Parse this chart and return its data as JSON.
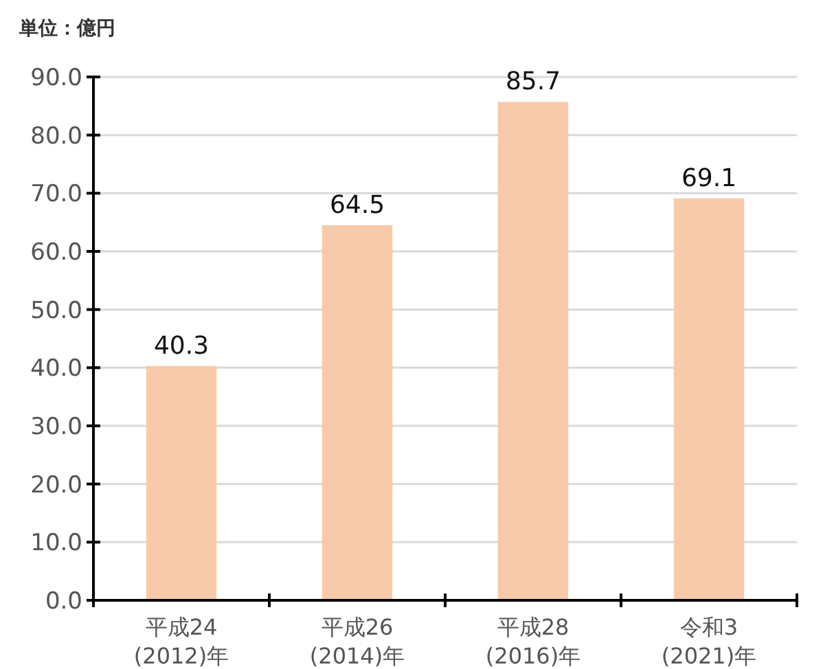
{
  "chart_data": {
    "type": "bar",
    "ylabel": "単位：億円",
    "categories": [
      "平成24\n(2012)年",
      "平成26\n(2014)年",
      "平成28\n(2016)年",
      "令和3\n(2021)年"
    ],
    "values": [
      40.3,
      64.5,
      85.7,
      69.1
    ],
    "color": "#f8caa9",
    "ylim": [
      0,
      90
    ],
    "yticks": [
      {
        "value": 0,
        "label": "0.0"
      },
      {
        "value": 10,
        "label": "10.0"
      },
      {
        "value": 20,
        "label": "20.0"
      },
      {
        "value": 30,
        "label": "30.0"
      },
      {
        "value": 40,
        "label": "40.0"
      },
      {
        "value": 50,
        "label": "50.0"
      },
      {
        "value": 60,
        "label": "60.0"
      },
      {
        "value": 70,
        "label": "70.0"
      },
      {
        "value": 80,
        "label": "80.0"
      },
      {
        "value": 90,
        "label": "90.0"
      }
    ],
    "grid": "y",
    "data_labels": true
  }
}
